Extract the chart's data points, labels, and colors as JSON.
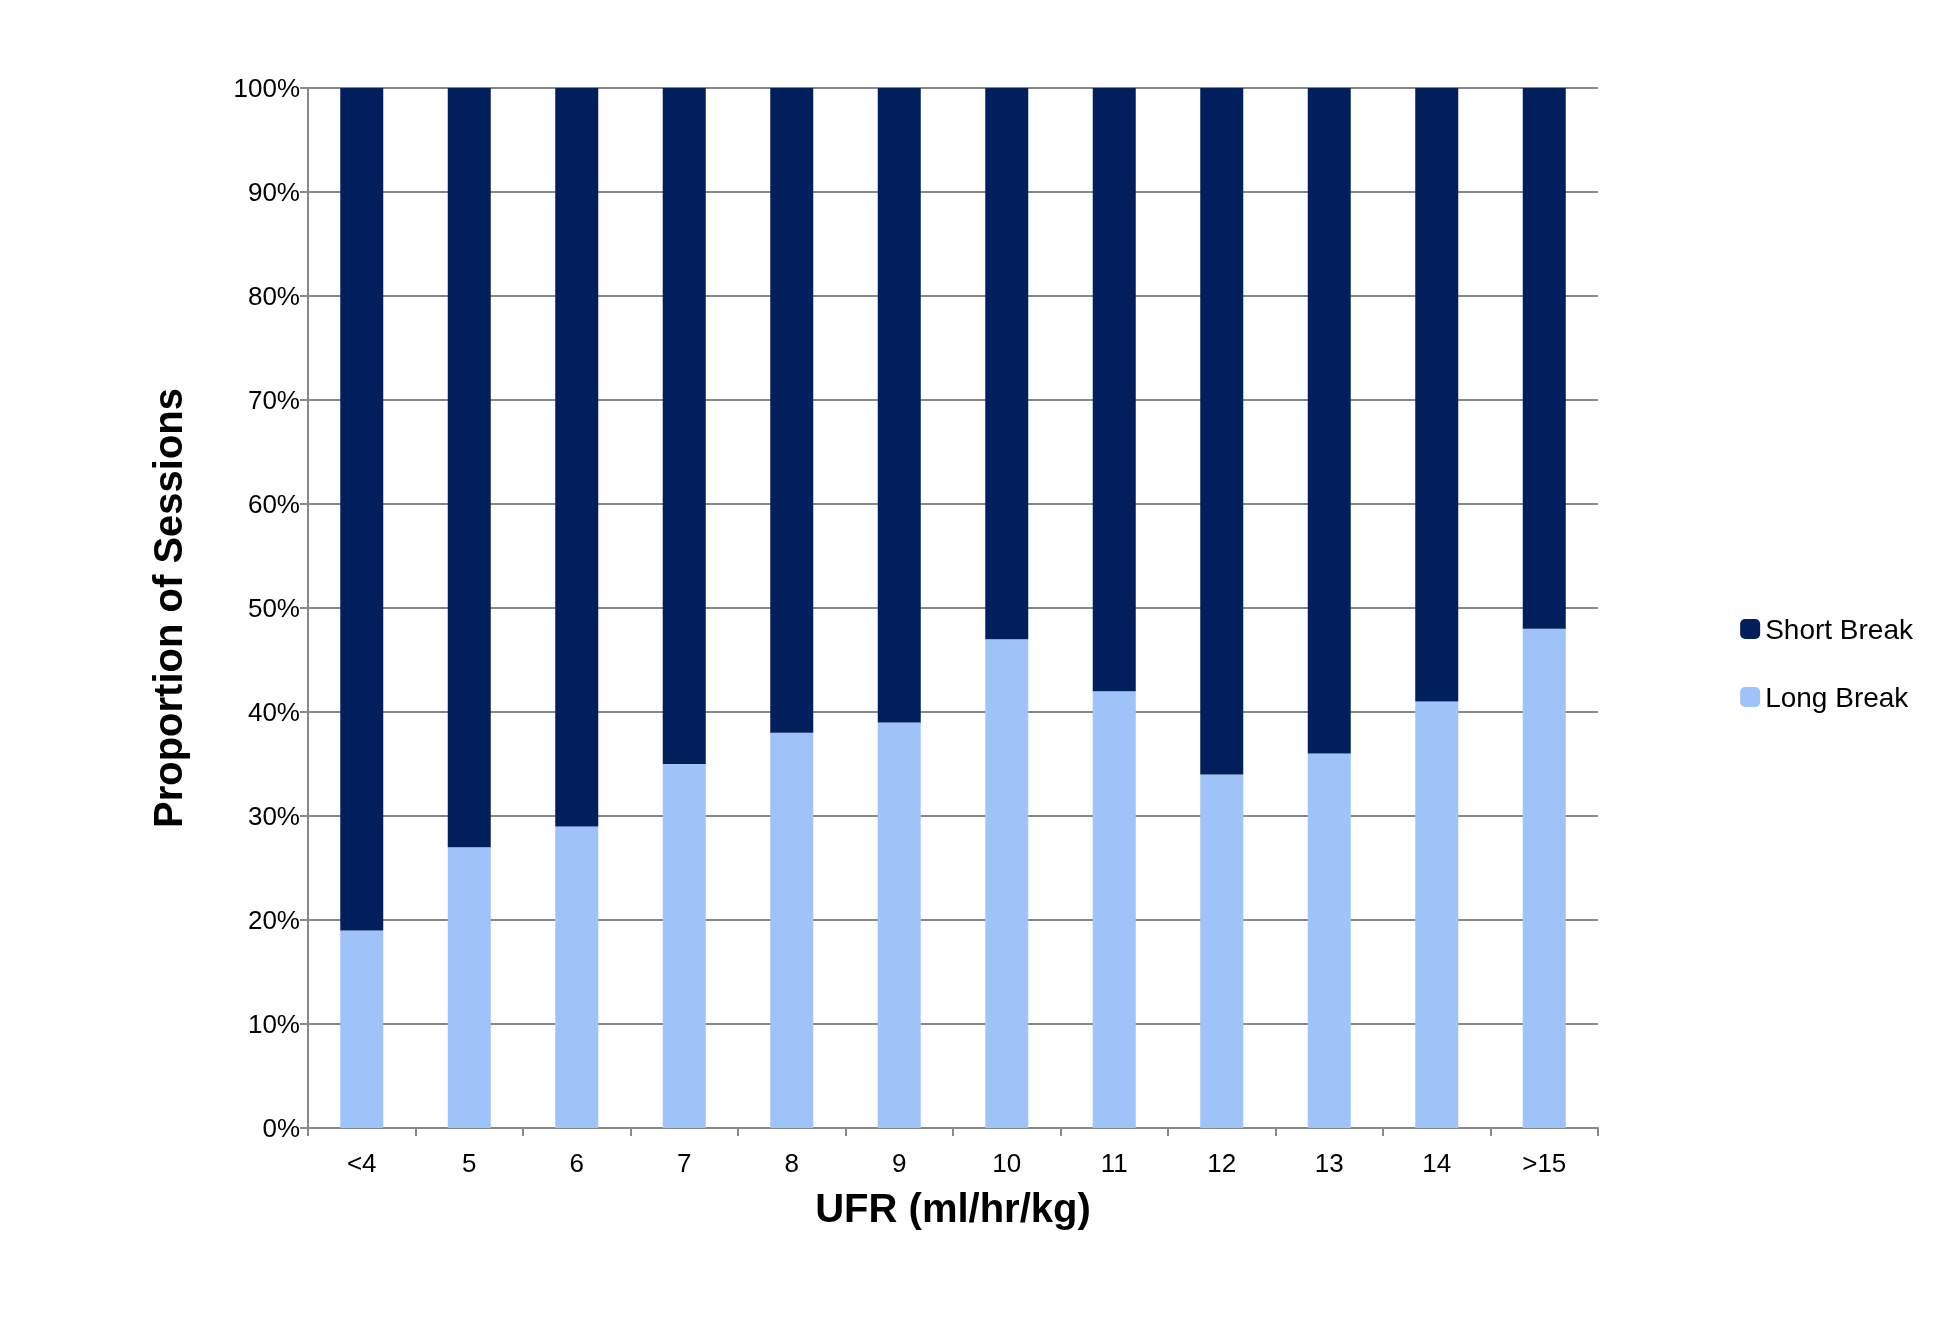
{
  "chart_data": {
    "type": "bar",
    "stacked": true,
    "xlabel": "UFR (ml/hr/kg)",
    "ylabel": "Proportion of Sessions",
    "categories": [
      "<4",
      "5",
      "6",
      "7",
      "8",
      "9",
      "10",
      "11",
      "12",
      "13",
      "14",
      ">15"
    ],
    "series": [
      {
        "name": "Long Break",
        "color": "#9dc3f8",
        "values": [
          19,
          27,
          29,
          35,
          38,
          39,
          47,
          42,
          34,
          36,
          41,
          48
        ]
      },
      {
        "name": "Short Break",
        "color": "#001f5c",
        "values": [
          81,
          73,
          71,
          65,
          62,
          61,
          53,
          58,
          66,
          64,
          59,
          52
        ]
      }
    ],
    "ylim": [
      0,
      100
    ],
    "yticks": [
      {
        "value": 0,
        "label": "0%"
      },
      {
        "value": 10,
        "label": "10%"
      },
      {
        "value": 20,
        "label": "20%"
      },
      {
        "value": 30,
        "label": "30%"
      },
      {
        "value": 40,
        "label": "40%"
      },
      {
        "value": 50,
        "label": "50%"
      },
      {
        "value": 60,
        "label": "60%"
      },
      {
        "value": 70,
        "label": "70%"
      },
      {
        "value": 80,
        "label": "80%"
      },
      {
        "value": 90,
        "label": "90%"
      },
      {
        "value": 100,
        "label": "100%"
      }
    ],
    "grid": "y",
    "legend": "right"
  }
}
